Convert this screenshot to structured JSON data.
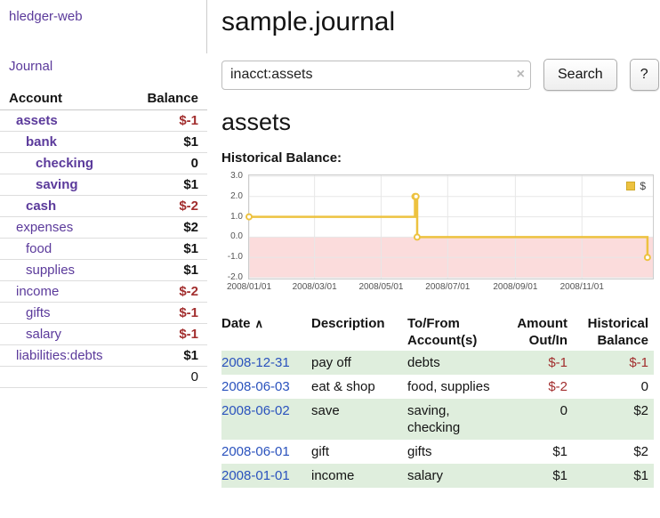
{
  "brand": {
    "label": "hledger-web"
  },
  "sidebar": {
    "journal_link": "Journal",
    "accounts": {
      "header_account": "Account",
      "header_balance": "Balance",
      "rows": [
        {
          "name": "assets",
          "indent": 0,
          "balance": "$-1",
          "emph": true
        },
        {
          "name": "bank",
          "indent": 1,
          "balance": "$1",
          "emph": true
        },
        {
          "name": "checking",
          "indent": 2,
          "balance": "0",
          "emph": true
        },
        {
          "name": "saving",
          "indent": 2,
          "balance": "$1",
          "emph": true
        },
        {
          "name": "cash",
          "indent": 1,
          "balance": "$-2",
          "emph": true
        },
        {
          "name": "expenses",
          "indent": 0,
          "balance": "$2",
          "emph": false
        },
        {
          "name": "food",
          "indent": 1,
          "balance": "$1",
          "emph": false
        },
        {
          "name": "supplies",
          "indent": 1,
          "balance": "$1",
          "emph": false
        },
        {
          "name": "income",
          "indent": 0,
          "balance": "$-2",
          "emph": false
        },
        {
          "name": "gifts",
          "indent": 1,
          "balance": "$-1",
          "emph": false
        },
        {
          "name": "salary",
          "indent": 1,
          "balance": "$-1",
          "emph": false
        },
        {
          "name": "liabilities:debts",
          "indent": 0,
          "balance": "$1",
          "emph": false
        }
      ],
      "total": "0"
    }
  },
  "main": {
    "title": "sample.journal",
    "search": {
      "value": "inacct:assets",
      "clear_icon": "×",
      "search_button": "Search",
      "help_button": "?"
    },
    "account_heading": "assets",
    "chart_heading": "Historical Balance:"
  },
  "chart_data": {
    "type": "line",
    "title": "Historical Balance",
    "series": [
      {
        "name": "$",
        "color": "#edc240",
        "style": "steps",
        "points": [
          [
            "2008-01-01",
            1
          ],
          [
            "2008-06-01",
            2
          ],
          [
            "2008-06-02",
            2
          ],
          [
            "2008-06-03",
            0
          ],
          [
            "2008-12-31",
            -1
          ]
        ]
      }
    ],
    "ylim": [
      -2,
      3
    ],
    "yticks": [
      "3.0",
      "2.0",
      "1.0",
      "0.0",
      "-1.0",
      "-2.0"
    ],
    "xticks": [
      "2008/01/01",
      "2008/03/01",
      "2008/05/01",
      "2008/07/01",
      "2008/09/01",
      "2008/11/01"
    ],
    "xaxis": {
      "min": "2008-01-01",
      "max": "2009-01-05"
    },
    "legend": {
      "label": "$",
      "position": "top-right"
    },
    "grid": true,
    "colors": {
      "negative_region": "#fbdcdc",
      "gridline": "#e7e7e7",
      "border": "#cccccc"
    }
  },
  "register": {
    "headers": {
      "date": "Date",
      "sort_icon": "∧",
      "description": "Description",
      "accounts": "To/From Account(s)",
      "amount": "Amount Out/In",
      "balance": "Historical Balance"
    },
    "rows": [
      {
        "date": "2008-12-31",
        "description": "pay off",
        "accounts": "debts",
        "amount": "$-1",
        "balance": "$-1"
      },
      {
        "date": "2008-06-03",
        "description": "eat & shop",
        "accounts": "food, supplies",
        "amount": "$-2",
        "balance": "0"
      },
      {
        "date": "2008-06-02",
        "description": "save",
        "accounts": "saving, checking",
        "amount": "0",
        "balance": "$2"
      },
      {
        "date": "2008-06-01",
        "description": "gift",
        "accounts": "gifts",
        "amount": "$1",
        "balance": "$2"
      },
      {
        "date": "2008-01-01",
        "description": "income",
        "accounts": "salary",
        "amount": "$1",
        "balance": "$1"
      }
    ]
  },
  "colors": {
    "link_purple": "#5b3a9b",
    "link_blue": "#2a52bd",
    "negative_red": "#a22e2e",
    "row_green": "#dfeedd",
    "series_gold": "#edc240"
  }
}
